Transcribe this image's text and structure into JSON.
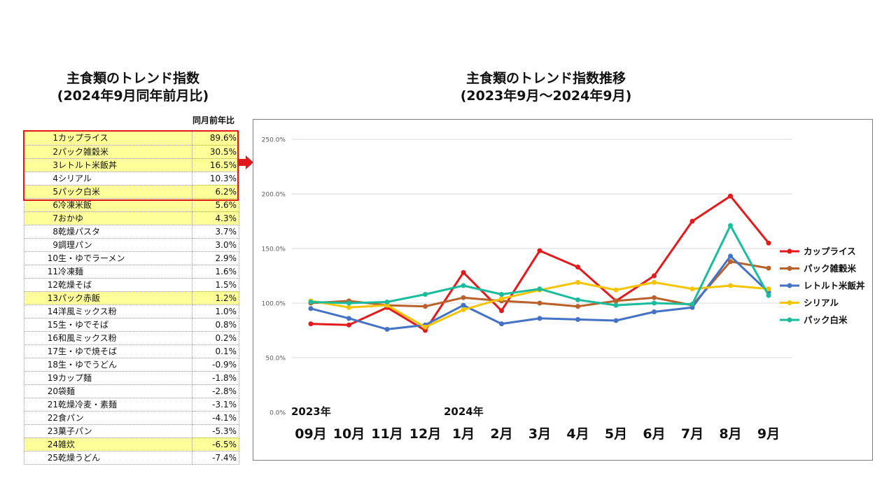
{
  "left_title": {
    "line1": "主食類のトレンド指数",
    "line2": "(2024年9月同年前月比)"
  },
  "table": {
    "column_header": "同月前年比",
    "rows": [
      {
        "rank": "1",
        "name": "カップライス",
        "value": "89.6%",
        "highlight": true
      },
      {
        "rank": "2",
        "name": "パック雑穀米",
        "value": "30.5%",
        "highlight": true
      },
      {
        "rank": "3",
        "name": "レトルト米飯丼",
        "value": "16.5%",
        "highlight": true
      },
      {
        "rank": "4",
        "name": "シリアル",
        "value": "10.3%",
        "highlight": false
      },
      {
        "rank": "5",
        "name": "パック白米",
        "value": "6.2%",
        "highlight": true
      },
      {
        "rank": "6",
        "name": "冷凍米飯",
        "value": "5.6%",
        "highlight": true
      },
      {
        "rank": "7",
        "name": "おかゆ",
        "value": "4.3%",
        "highlight": true
      },
      {
        "rank": "8",
        "name": "乾燥パスタ",
        "value": "3.7%",
        "highlight": false
      },
      {
        "rank": "9",
        "name": "調理パン",
        "value": "3.0%",
        "highlight": false
      },
      {
        "rank": "10",
        "name": "生・ゆでラーメン",
        "value": "2.9%",
        "highlight": false
      },
      {
        "rank": "11",
        "name": "冷凍麺",
        "value": "1.6%",
        "highlight": false
      },
      {
        "rank": "12",
        "name": "乾燥そば",
        "value": "1.5%",
        "highlight": false
      },
      {
        "rank": "13",
        "name": "パック赤飯",
        "value": "1.2%",
        "highlight": true
      },
      {
        "rank": "14",
        "name": "洋風ミックス粉",
        "value": "1.0%",
        "highlight": false
      },
      {
        "rank": "15",
        "name": "生・ゆでそば",
        "value": "0.8%",
        "highlight": false
      },
      {
        "rank": "16",
        "name": "和風ミックス粉",
        "value": "0.2%",
        "highlight": false
      },
      {
        "rank": "17",
        "name": "生・ゆで焼そば",
        "value": "0.1%",
        "highlight": false
      },
      {
        "rank": "18",
        "name": "生・ゆでうどん",
        "value": "-0.9%",
        "highlight": false
      },
      {
        "rank": "19",
        "name": "カップ麺",
        "value": "-1.8%",
        "highlight": false
      },
      {
        "rank": "20",
        "name": "袋麺",
        "value": "-2.8%",
        "highlight": false
      },
      {
        "rank": "21",
        "name": "乾燥冷麦・素麺",
        "value": "-3.1%",
        "highlight": false
      },
      {
        "rank": "22",
        "name": "食パン",
        "value": "-4.1%",
        "highlight": false
      },
      {
        "rank": "23",
        "name": "菓子パン",
        "value": "-5.3%",
        "highlight": false
      },
      {
        "rank": "24",
        "name": "雑炊",
        "value": "-6.5%",
        "highlight": true
      },
      {
        "rank": "25",
        "name": "乾燥うどん",
        "value": "-7.4%",
        "highlight": false
      }
    ]
  },
  "colors": {
    "highlight": "#ffff99",
    "top5_border": "#e31a1c",
    "arrow": "#e31a1c"
  },
  "chart_data": {
    "type": "line",
    "title": "主食類のトレンド指数推移",
    "subtitle": "(2023年9月〜2024年9月)",
    "categories": [
      "09月",
      "10月",
      "11月",
      "12月",
      "1月",
      "2月",
      "3月",
      "4月",
      "5月",
      "6月",
      "7月",
      "8月",
      "9月"
    ],
    "year_labels": [
      {
        "label": "2023年",
        "category_index": 0
      },
      {
        "label": "2024年",
        "category_index": 4
      }
    ],
    "y_ticks": [
      "0.0%",
      "50.0%",
      "100.0%",
      "150.0%",
      "200.0%",
      "250.0%"
    ],
    "ylim": [
      0,
      250
    ],
    "xlabel": "",
    "ylabel": "",
    "grid": true,
    "legend_position": "right",
    "series": [
      {
        "name": "カップライス",
        "color": "#e31a1c",
        "values": [
          81,
          80,
          96,
          75,
          128,
          93,
          148,
          133,
          102,
          125,
          175,
          198,
          155
        ]
      },
      {
        "name": "パック雑穀米",
        "color": "#b8612a",
        "values": [
          100,
          102,
          98,
          97,
          105,
          102,
          100,
          97,
          102,
          105,
          98,
          138,
          132
        ]
      },
      {
        "name": "レトルト米飯丼",
        "color": "#4472c4",
        "values": [
          95,
          86,
          76,
          80,
          98,
          81,
          86,
          85,
          84,
          92,
          96,
          143,
          110
        ]
      },
      {
        "name": "シリアル",
        "color": "#f5c400",
        "values": [
          102,
          96,
          98,
          78,
          94,
          104,
          112,
          119,
          112,
          119,
          113,
          116,
          113
        ]
      },
      {
        "name": "パック白米",
        "color": "#1abc9c",
        "values": [
          101,
          100,
          101,
          108,
          116,
          108,
          113,
          103,
          98,
          100,
          99,
          171,
          107
        ]
      }
    ]
  }
}
